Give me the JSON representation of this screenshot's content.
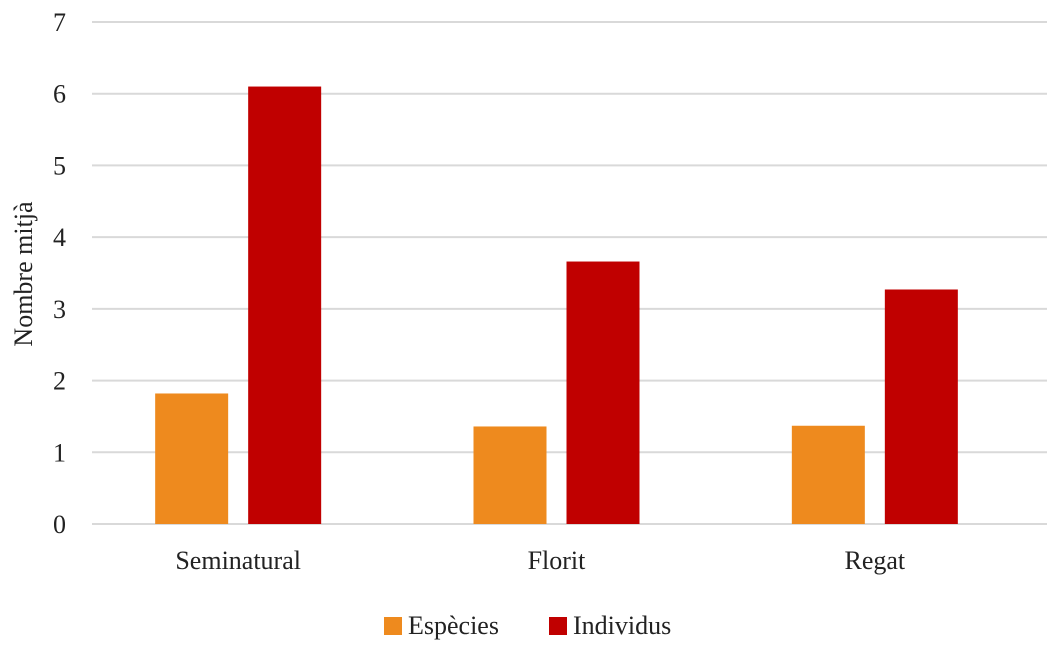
{
  "chart_data": {
    "type": "bar",
    "title": "",
    "xlabel": "",
    "ylabel": "Nombre mitjà",
    "categories": [
      "Seminatural",
      "Florit",
      "Regat"
    ],
    "series": [
      {
        "name": "Espècies",
        "color": "#EE8A1E",
        "values": [
          1.82,
          1.36,
          1.37
        ]
      },
      {
        "name": "Individus",
        "color": "#C00000",
        "values": [
          6.1,
          3.66,
          3.27
        ]
      }
    ],
    "ylim": [
      0,
      7
    ],
    "yticks": [
      0,
      1,
      2,
      3,
      4,
      5,
      6,
      7
    ],
    "grid": true,
    "gridline_color": "#D9D9D9",
    "legend_position": "bottom-center"
  }
}
